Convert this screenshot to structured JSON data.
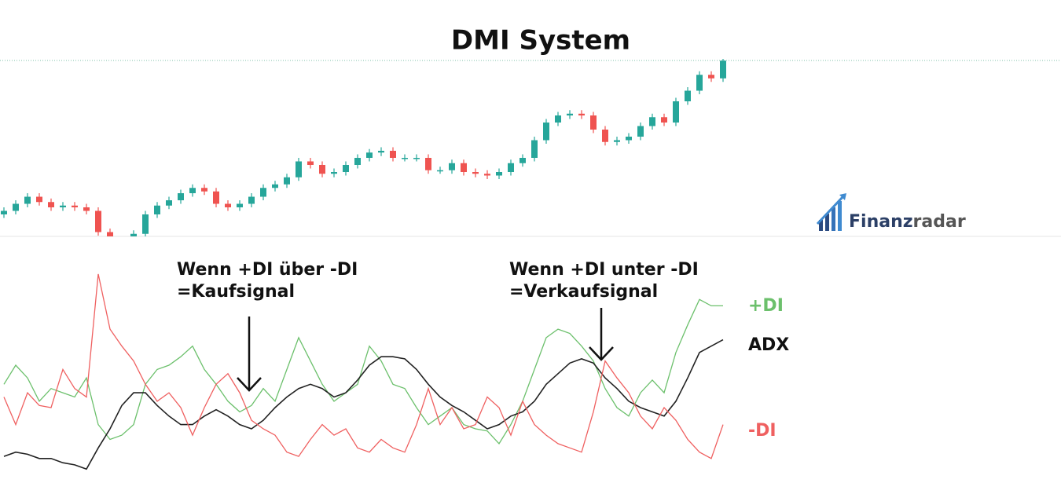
{
  "chart_data": [
    {
      "type": "candlestick",
      "title": "DMI System",
      "up_color": "#26a69a",
      "down_color": "#ef5350",
      "ylim": [
        0,
        100
      ],
      "open": [
        12,
        14,
        18,
        22,
        19,
        16,
        17,
        16,
        14,
        2,
        -5,
        -6,
        1,
        12,
        17,
        20,
        24,
        27,
        25,
        18,
        16,
        18,
        22,
        27,
        29,
        33,
        42,
        40,
        35,
        36,
        40,
        44,
        47,
        48,
        44,
        44,
        44,
        37,
        37,
        41,
        36,
        35,
        34,
        36,
        41,
        44,
        54,
        64,
        68,
        69,
        68,
        60,
        53,
        54,
        56,
        62,
        67,
        64,
        76,
        82,
        91,
        89
      ],
      "close": [
        14,
        18,
        22,
        19,
        16,
        17,
        16,
        14,
        2,
        -5,
        -6,
        1,
        12,
        17,
        20,
        24,
        27,
        25,
        18,
        16,
        18,
        22,
        27,
        29,
        33,
        42,
        40,
        35,
        36,
        40,
        44,
        47,
        48,
        44,
        44,
        44,
        37,
        37,
        41,
        36,
        35,
        34,
        36,
        41,
        44,
        54,
        64,
        68,
        69,
        68,
        60,
        53,
        54,
        56,
        62,
        67,
        64,
        76,
        82,
        91,
        89,
        99
      ],
      "high": [
        16,
        20,
        24,
        24,
        21,
        19,
        19,
        18,
        16,
        4,
        -3,
        3,
        14,
        19,
        22,
        26,
        29,
        29,
        27,
        20,
        20,
        24,
        29,
        31,
        35,
        44,
        44,
        42,
        38,
        42,
        46,
        49,
        50,
        50,
        46,
        46,
        46,
        39,
        43,
        43,
        38,
        37,
        38,
        43,
        46,
        56,
        66,
        70,
        71,
        71,
        70,
        62,
        56,
        58,
        64,
        69,
        69,
        78,
        84,
        93,
        93,
        101
      ],
      "low": [
        10,
        12,
        16,
        17,
        14,
        14,
        14,
        12,
        0,
        -7,
        -8,
        -8,
        -1,
        10,
        15,
        18,
        22,
        23,
        16,
        14,
        14,
        16,
        20,
        25,
        27,
        31,
        38,
        33,
        33,
        34,
        38,
        42,
        45,
        42,
        42,
        42,
        35,
        35,
        35,
        34,
        33,
        32,
        32,
        34,
        39,
        42,
        52,
        62,
        66,
        66,
        58,
        51,
        51,
        52,
        54,
        60,
        62,
        62,
        74,
        80,
        87,
        87
      ]
    },
    {
      "type": "line",
      "ylim": [
        0,
        100
      ],
      "series": [
        {
          "name": "+DI",
          "color": "#6cc06c",
          "values": [
            41,
            50,
            44,
            33,
            39,
            37,
            35,
            44,
            22,
            15,
            17,
            22,
            41,
            48,
            50,
            54,
            59,
            48,
            41,
            33,
            28,
            31,
            39,
            33,
            48,
            63,
            52,
            41,
            33,
            37,
            41,
            59,
            52,
            41,
            39,
            30,
            22,
            26,
            30,
            22,
            20,
            19,
            13,
            22,
            33,
            48,
            63,
            67,
            65,
            59,
            52,
            39,
            30,
            26,
            37,
            43,
            37,
            56,
            69,
            81,
            78,
            78
          ]
        },
        {
          "name": "ADX",
          "color": "#222222",
          "values": [
            7,
            9,
            8,
            6,
            6,
            4,
            3,
            1,
            11,
            20,
            31,
            37,
            37,
            31,
            26,
            22,
            22,
            26,
            29,
            26,
            22,
            20,
            24,
            30,
            35,
            39,
            41,
            39,
            35,
            37,
            43,
            50,
            54,
            54,
            53,
            48,
            41,
            35,
            31,
            28,
            24,
            20,
            22,
            26,
            28,
            33,
            41,
            46,
            51,
            53,
            51,
            44,
            39,
            33,
            30,
            28,
            26,
            33,
            44,
            56,
            59,
            62
          ]
        },
        {
          "name": "-DI",
          "color": "#ef6060",
          "values": [
            35,
            22,
            37,
            31,
            30,
            48,
            39,
            35,
            93,
            67,
            59,
            52,
            41,
            33,
            37,
            30,
            17,
            30,
            41,
            46,
            37,
            24,
            20,
            17,
            9,
            7,
            15,
            22,
            17,
            20,
            11,
            9,
            15,
            11,
            9,
            22,
            39,
            22,
            30,
            20,
            22,
            35,
            30,
            17,
            33,
            22,
            17,
            13,
            11,
            9,
            28,
            52,
            44,
            37,
            26,
            20,
            30,
            24,
            15,
            9,
            6,
            22
          ]
        }
      ],
      "annotations": [
        [
          "Wenn +DI über -DI",
          "=Kaufsignal"
        ],
        [
          "Wenn +DI unter -DI",
          "=Verkaufsignal"
        ]
      ]
    }
  ],
  "logo": {
    "strong": "Finanz",
    "light": "radar"
  }
}
